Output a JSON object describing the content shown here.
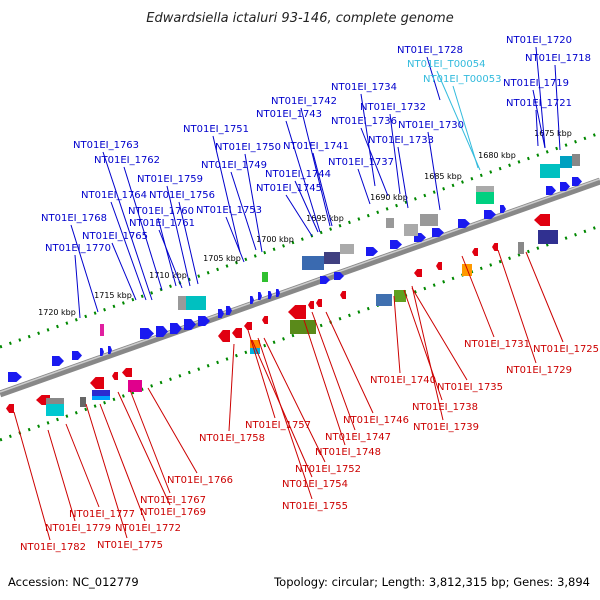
{
  "title": "Edwardsiella ictaluri 93-146, complete genome",
  "footer": {
    "accession": "Accession: NC_012779",
    "stats": "Topology: circular; Length: 3,812,315 bp; Genes: 3,894"
  },
  "colors": {
    "plus_label": "#0000cc",
    "minus_label": "#cc0000",
    "rna_label": "#33bbdd",
    "backbone": "#888888",
    "ticks": "#008800"
  },
  "scale_labels": [
    "1675 kbp",
    "1680 kbp",
    "1685 kbp",
    "1690 kbp",
    "1695 kbp",
    "1700 kbp",
    "1705 kbp",
    "1710 kbp",
    "1715 kbp",
    "1720 kbp"
  ],
  "plus_genes": [
    "NT01EI_1720",
    "NT01EI_1718",
    "NT01EI_1728",
    "NT01EI_T00054",
    "NT01EI_T00053",
    "NT01EI_1719",
    "NT01EI_1721",
    "NT01EI_1734",
    "NT01EI_1742",
    "NT01EI_1732",
    "NT01EI_1743",
    "NT01EI_1736",
    "NT01EI_1730",
    "NT01EI_1751",
    "NT01EI_1733",
    "NT01EI_1763",
    "NT01EI_1750",
    "NT01EI_1741",
    "NT01EI_1762",
    "NT01EI_1749",
    "NT01EI_1737",
    "NT01EI_1759",
    "NT01EI_1744",
    "NT01EI_1745",
    "NT01EI_1764",
    "NT01EI_1756",
    "NT01EI_1760",
    "NT01EI_1753",
    "NT01EI_1768",
    "NT01EI_1761",
    "NT01EI_1765",
    "NT01EI_1770"
  ],
  "minus_genes": [
    "NT01EI_1731",
    "NT01EI_1725",
    "NT01EI_1729",
    "NT01EI_1740",
    "NT01EI_1735",
    "NT01EI_1738",
    "NT01EI_1746",
    "NT01EI_1739",
    "NT01EI_1758",
    "NT01EI_1757",
    "NT01EI_1747",
    "NT01EI_1748",
    "NT01EI_1752",
    "NT01EI_1766",
    "NT01EI_1754",
    "NT01EI_1767",
    "NT01EI_1755",
    "NT01EI_1777",
    "NT01EI_1769",
    "NT01EI_1779",
    "NT01EI_1772",
    "NT01EI_1782",
    "NT01EI_1775"
  ]
}
